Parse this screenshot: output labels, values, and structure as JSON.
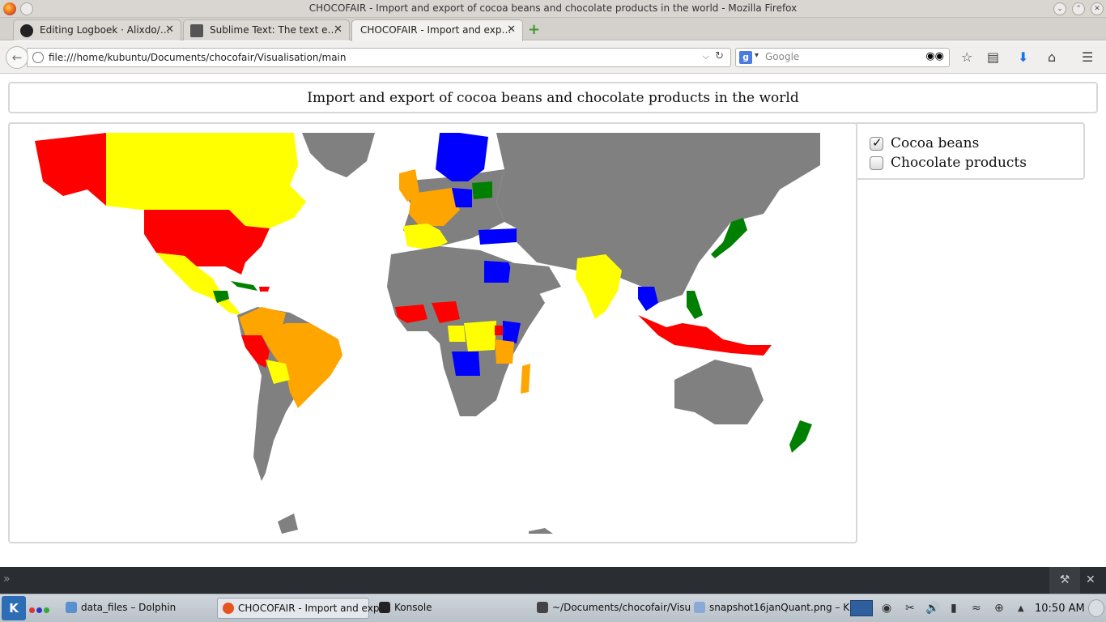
{
  "window": {
    "title": "CHOCOFAIR - Import and export of cocoa beans and chocolate products in the world - Mozilla Firefox"
  },
  "tabs": [
    {
      "label": "Editing Logboek · Alixdo/…",
      "icon": "github-icon"
    },
    {
      "label": "Sublime Text: The text e…",
      "icon": "sublime-icon"
    },
    {
      "label": "CHOCOFAIR - Import and exp…",
      "icon": "firefox-icon"
    }
  ],
  "nav": {
    "url": "file:///home/kubuntu/Documents/chocofair/Visualisation/main",
    "search_placeholder": "Google"
  },
  "page": {
    "title": "Import and export of cocoa beans and chocolate products in the world"
  },
  "legend": {
    "options": [
      {
        "label": "Cocoa beans",
        "checked": true
      },
      {
        "label": "Chocolate products",
        "checked": false
      }
    ]
  },
  "map": {
    "colors": {
      "red": "#ff0000",
      "orange": "#ffa500",
      "yellow": "#ffff00",
      "blue": "#0000ff",
      "green": "#008000",
      "gray": "#808080"
    }
  },
  "taskbar": {
    "tasks": [
      {
        "label": "data_files – Dolphin"
      },
      {
        "label": "CHOCOFAIR - Import and exp",
        "active": true
      },
      {
        "label": "Konsole"
      },
      {
        "label": "~/Documents/chocofair/Visu"
      },
      {
        "label": "snapshot16janQuant.png – K"
      }
    ],
    "clock": "10:50 AM"
  }
}
